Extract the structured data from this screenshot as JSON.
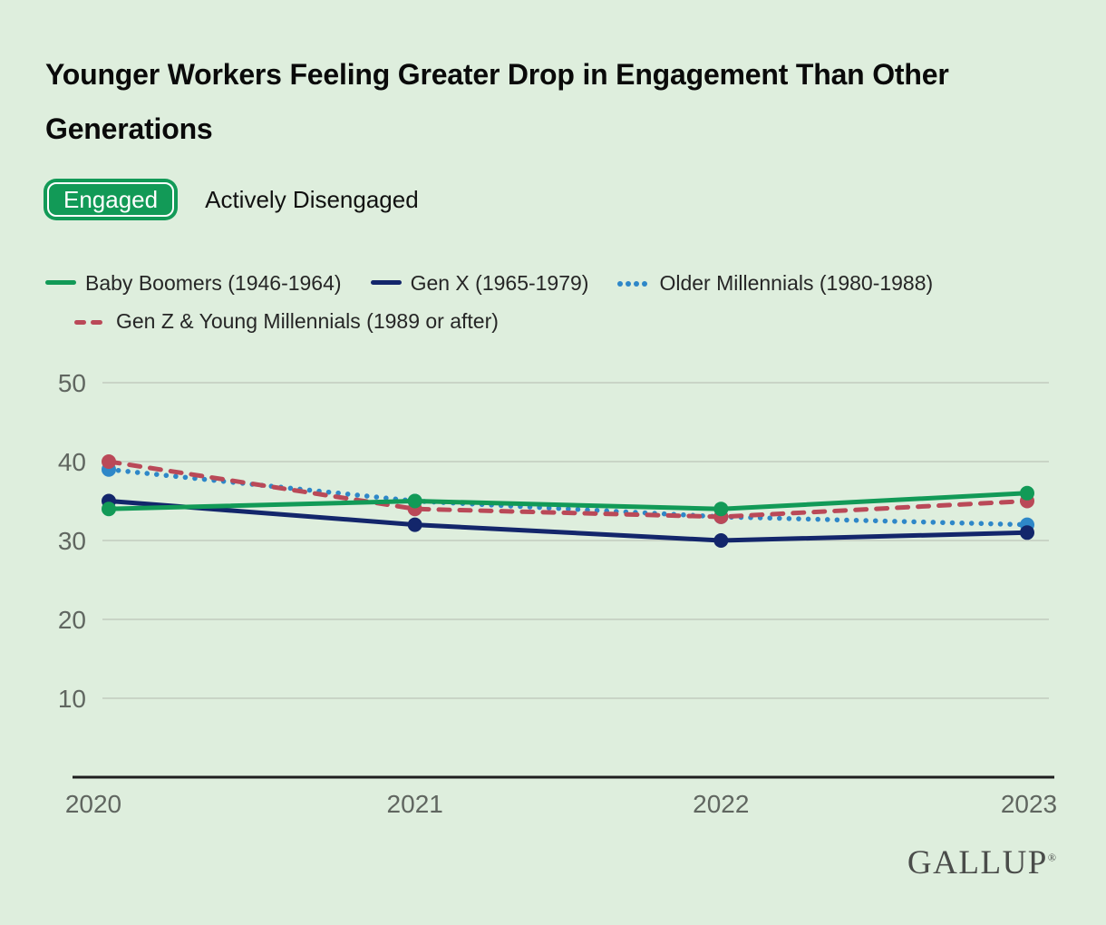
{
  "title": "Younger Workers Feeling Greater Drop in Engagement Than Other Generations",
  "toggle": {
    "engaged": "Engaged",
    "actively_disengaged": "Actively Disengaged",
    "active_color": "#129a57"
  },
  "chart_data": {
    "type": "line",
    "title": "Younger Workers Feeling Greater Drop in Engagement Than Other Generations",
    "x": [
      2020,
      2021,
      2022,
      2023
    ],
    "xticklabels": [
      "2020",
      "2021",
      "2022",
      "2023"
    ],
    "yticks": [
      10,
      20,
      30,
      40,
      50
    ],
    "ylim": [
      0,
      55
    ],
    "grid": true,
    "legend_position": "top",
    "series": [
      {
        "name": "Baby Boomers (1946-1964)",
        "values": [
          34,
          35,
          34,
          36
        ],
        "color": "#129a57",
        "style": "solid"
      },
      {
        "name": "Gen X (1965-1979)",
        "values": [
          35,
          32,
          30,
          31
        ],
        "color": "#13266b",
        "style": "solid"
      },
      {
        "name": "Older Millennials (1980-1988)",
        "values": [
          39,
          35,
          33,
          32
        ],
        "color": "#2e87c8",
        "style": "dotted"
      },
      {
        "name": "Gen Z & Young Millennials (1989 or after)",
        "values": [
          40,
          34,
          33,
          35
        ],
        "color": "#ba4958",
        "style": "dashed"
      }
    ]
  },
  "colors": {
    "background": "#deeedd",
    "gridline": "#c9d4c6",
    "axis_line": "#1e1e1e",
    "tick_label": "#606660",
    "title_text": "#0a0a0a",
    "legend_text": "#262626",
    "logo_text": "#4a4c4a"
  },
  "logo": {
    "text": "GALLUP",
    "registered": "®"
  }
}
